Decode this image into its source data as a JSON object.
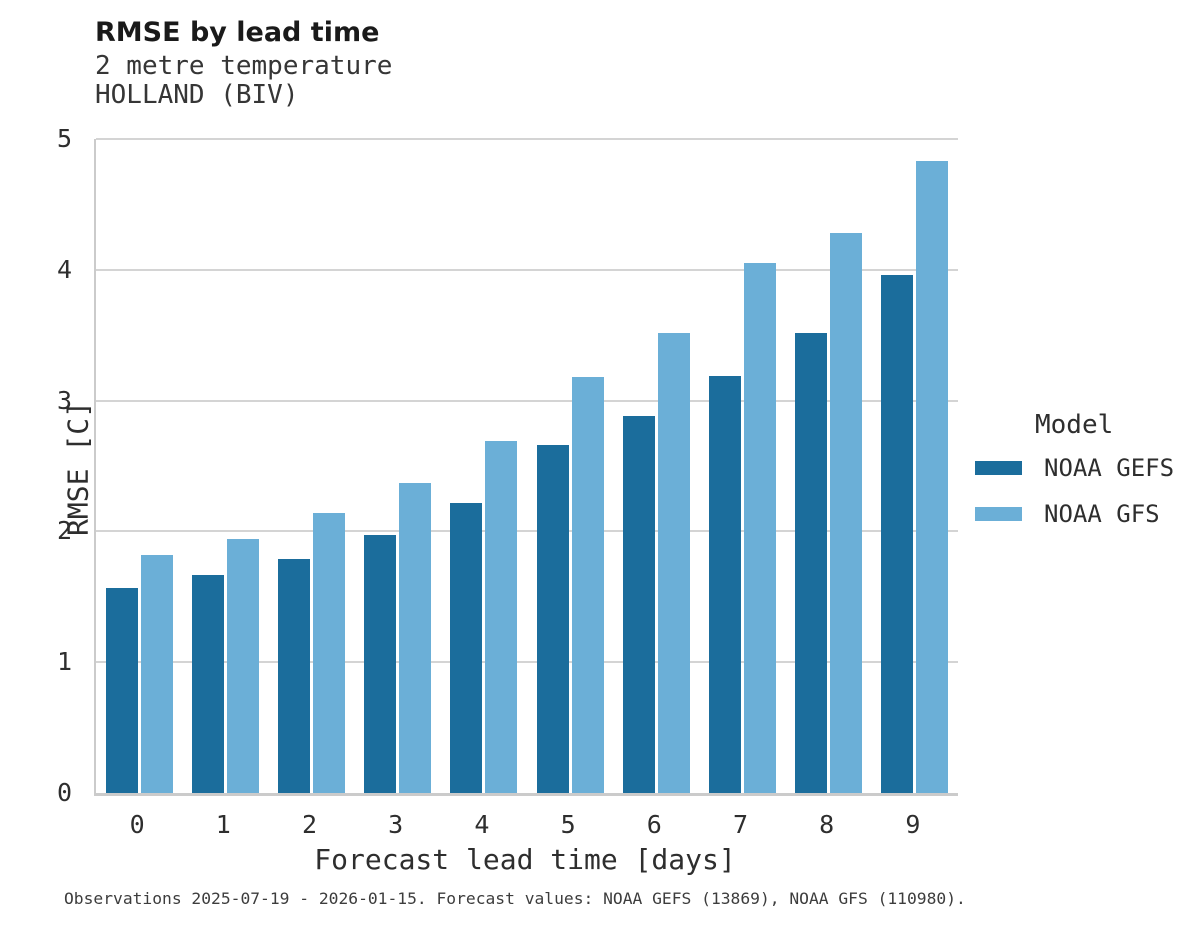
{
  "chart_data": {
    "type": "bar",
    "title": "RMSE by lead time",
    "subtitle": [
      "2 metre temperature",
      "HOLLAND (BIV)"
    ],
    "categories": [
      "0",
      "1",
      "2",
      "3",
      "4",
      "5",
      "6",
      "7",
      "8",
      "9"
    ],
    "series": [
      {
        "name": "NOAA GEFS",
        "color": "#1b6d9c",
        "values": [
          1.57,
          1.67,
          1.79,
          1.97,
          2.22,
          2.66,
          2.88,
          3.19,
          3.52,
          3.96
        ]
      },
      {
        "name": "NOAA GFS",
        "color": "#6bafd7",
        "values": [
          1.82,
          1.94,
          2.14,
          2.37,
          2.69,
          3.18,
          3.52,
          4.05,
          4.28,
          4.83
        ]
      }
    ],
    "xlabel": "Forecast lead time [days]",
    "ylabel": "RMSE [C]",
    "ylim": [
      0,
      5
    ],
    "yticks": [
      0,
      1,
      2,
      3,
      4,
      5
    ],
    "grid": true,
    "legend": {
      "title": "Model",
      "position": "right"
    }
  },
  "footer": {
    "note": "Observations 2025-07-19 - 2026-01-15. Forecast values: NOAA GEFS (13869), NOAA GFS (110980)."
  }
}
